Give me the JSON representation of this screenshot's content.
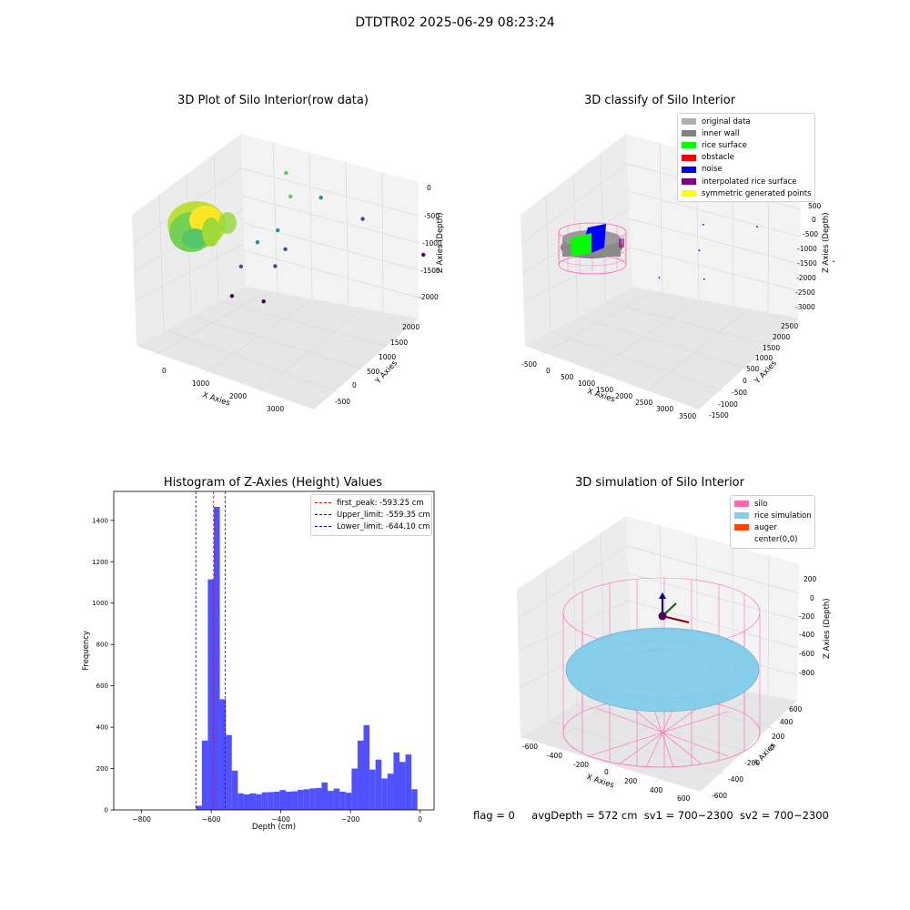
{
  "page": {
    "title": "DTDTR02 2025-06-29 08:23:24"
  },
  "colors": {
    "original_data": "#b0b0b0",
    "inner_wall": "#808080",
    "rice_surface": "#00ff00",
    "obstacle": "#ff0000",
    "noise": "#0000ff",
    "interpolated_rice_surface": "#800080",
    "symmetric_generated_points": "#ffff00",
    "histogram_bar": "#5050ff",
    "first_peak_line": "#ff0000",
    "limit_line": "#0000ff",
    "silo": "#ff69b4",
    "rice_simulation": "#87ceeb",
    "auger": "#ff4500"
  },
  "chart_data": [
    {
      "type": "scatter",
      "projection": "3d",
      "title": "3D Plot of Silo Interior(row data)",
      "xlabel": "X Axies",
      "ylabel": "Y Axies",
      "zlabel": "Z Axies (Depth)",
      "xticks": [
        "0",
        "1000",
        "2000",
        "3000"
      ],
      "yticks": [
        "-500",
        "0",
        "500",
        "1000",
        "1500",
        "2000"
      ],
      "zticks": [
        "0",
        "-500",
        "-1000",
        "-1500",
        "-2000"
      ],
      "colormap": "viridis",
      "scattered_points": [
        {
          "x": 1130,
          "y": 1250,
          "z": -480
        },
        {
          "x": 1500,
          "y": 1100,
          "z": -700
        },
        {
          "x": 1800,
          "y": 1400,
          "z": -900
        },
        {
          "x": 1500,
          "y": 900,
          "z": -1150
        },
        {
          "x": 1300,
          "y": 700,
          "z": -1250
        },
        {
          "x": 1700,
          "y": 900,
          "z": -1450
        },
        {
          "x": 1200,
          "y": 500,
          "z": -1550
        },
        {
          "x": 1600,
          "y": 800,
          "z": -1700
        },
        {
          "x": 2400,
          "y": 1700,
          "z": -1400
        },
        {
          "x": 3500,
          "y": 2000,
          "z": -2050
        },
        {
          "x": 1300,
          "y": 300,
          "z": -1900
        },
        {
          "x": 1800,
          "y": 500,
          "z": -2050
        }
      ]
    },
    {
      "type": "scatter",
      "projection": "3d",
      "title": "3D classify of Silo Interior",
      "xlabel": "X Axies",
      "ylabel": "Y Axies",
      "zlabel": "Z Axies (Depth)",
      "xticks": [
        "-500",
        "0",
        "500",
        "1000",
        "1500",
        "2000",
        "2500",
        "3000",
        "3500"
      ],
      "yticks": [
        "-1500",
        "-1000",
        "-500",
        "0",
        "500",
        "1000",
        "1500",
        "2000",
        "2500"
      ],
      "zticks": [
        "500",
        "0",
        "-500",
        "-1000",
        "-1500",
        "-2000",
        "-2500",
        "-3000"
      ],
      "series": [
        {
          "name": "original data"
        },
        {
          "name": "inner wall"
        },
        {
          "name": "rice surface"
        },
        {
          "name": "obstacle"
        },
        {
          "name": "noise",
          "points": [
            {
              "x": 1400,
              "y": 1100,
              "z": -700
            },
            {
              "x": 1600,
              "y": 800,
              "z": -1200
            },
            {
              "x": 2200,
              "y": 1500,
              "z": -900
            },
            {
              "x": 1200,
              "y": 300,
              "z": -1800
            },
            {
              "x": 1900,
              "y": 600,
              "z": -1900
            },
            {
              "x": 3400,
              "y": 2000,
              "z": -2300
            }
          ]
        },
        {
          "name": "interpolated rice surface"
        },
        {
          "name": "symmetric generated points"
        }
      ]
    },
    {
      "type": "bar",
      "title": "Histogram of Z-Axies (Height) Values",
      "xlabel": "Depth (cm)",
      "ylabel": "Frequency",
      "xlim": [
        -880,
        40
      ],
      "ylim": [
        0,
        1540
      ],
      "xticks": [
        -800,
        -600,
        -400,
        -200,
        0
      ],
      "yticks": [
        0,
        200,
        400,
        600,
        800,
        1000,
        1200,
        1400
      ],
      "bin_width": 17.2,
      "bins": [
        {
          "x": -644.1,
          "value": 20
        },
        {
          "x": -626.9,
          "value": 335
        },
        {
          "x": -609.7,
          "value": 1115
        },
        {
          "x": -592.5,
          "value": 1465
        },
        {
          "x": -575.3,
          "value": 535
        },
        {
          "x": -558.1,
          "value": 362
        },
        {
          "x": -540.9,
          "value": 190
        },
        {
          "x": -523.7,
          "value": 80
        },
        {
          "x": -506.5,
          "value": 75
        },
        {
          "x": -489.3,
          "value": 80
        },
        {
          "x": -472.1,
          "value": 76
        },
        {
          "x": -454.9,
          "value": 85
        },
        {
          "x": -437.7,
          "value": 86
        },
        {
          "x": -420.5,
          "value": 88
        },
        {
          "x": -403.3,
          "value": 96
        },
        {
          "x": -386.1,
          "value": 88
        },
        {
          "x": -368.9,
          "value": 90
        },
        {
          "x": -351.7,
          "value": 97
        },
        {
          "x": -334.5,
          "value": 100
        },
        {
          "x": -317.3,
          "value": 104
        },
        {
          "x": -300.1,
          "value": 106
        },
        {
          "x": -282.9,
          "value": 133
        },
        {
          "x": -265.7,
          "value": 92
        },
        {
          "x": -248.5,
          "value": 103
        },
        {
          "x": -231.3,
          "value": 88
        },
        {
          "x": -214.1,
          "value": 83
        },
        {
          "x": -196.9,
          "value": 200
        },
        {
          "x": -179.7,
          "value": 335
        },
        {
          "x": -162.5,
          "value": 410
        },
        {
          "x": -145.3,
          "value": 195
        },
        {
          "x": -128.1,
          "value": 243
        },
        {
          "x": -110.9,
          "value": 152
        },
        {
          "x": -93.7,
          "value": 175
        },
        {
          "x": -76.5,
          "value": 278
        },
        {
          "x": -59.3,
          "value": 232
        },
        {
          "x": -42.1,
          "value": 268
        },
        {
          "x": -24.9,
          "value": 100
        }
      ],
      "reference_lines": [
        {
          "label": "first_peak: -593.25 cm",
          "x": -593.25,
          "style": "dashed"
        },
        {
          "label": "Upper_limit: -559.35 cm",
          "x": -559.35,
          "style": "dashed"
        },
        {
          "label": "Lower_limit: -644.10 cm",
          "x": -644.1,
          "style": "dashed"
        }
      ],
      "legend_position": "upper right"
    },
    {
      "type": "surface",
      "projection": "3d",
      "title": "3D simulation of Silo Interior",
      "xlabel": "X Axies",
      "ylabel": "Y Axies",
      "zlabel": "Z Axies (Depth)",
      "xticks": [
        "-600",
        "-400",
        "-200",
        "0",
        "200",
        "400",
        "600"
      ],
      "yticks": [
        "-600",
        "-400",
        "-200",
        "0",
        "200",
        "400",
        "600"
      ],
      "zticks": [
        "200",
        "0",
        "-200",
        "-400",
        "-600",
        "-800"
      ],
      "series": [
        {
          "name": "silo"
        },
        {
          "name": "rice simulation"
        },
        {
          "name": "auger"
        },
        {
          "name": "center(0,0)"
        }
      ]
    }
  ],
  "footer": {
    "flag": "flag = 0",
    "avg_depth": "avgDepth = 572 cm",
    "sv1": "sv1 = 700~2300",
    "sv2": "sv2 = 700~2300"
  }
}
